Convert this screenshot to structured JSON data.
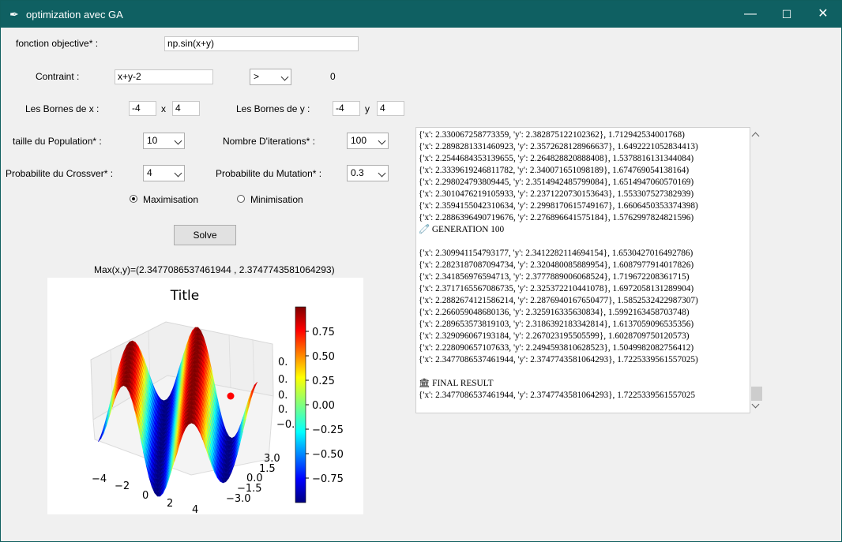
{
  "window": {
    "title": "optimization avec GA",
    "minimize": "—",
    "maximize": "☐",
    "close": "✕"
  },
  "form": {
    "objective_label": "fonction objective* :",
    "objective_value": "np.sin(x+y)",
    "constraint_label": "Contraint :",
    "constraint_value": "x+y-2",
    "constraint_op": ">",
    "constraint_rhs": "0",
    "bounds_x_label": "Les Bornes de x :",
    "bounds_x_min": "-4",
    "bounds_x_sep": "x",
    "bounds_x_max": "4",
    "bounds_y_label": "Les Bornes de y :",
    "bounds_y_min": "-4",
    "bounds_y_sep": "y",
    "bounds_y_max": "4",
    "population_label": "taille du Population* :",
    "population_value": "10",
    "iterations_label": "Nombre D'iterations* :",
    "iterations_value": "100",
    "crossover_label": "Probabilite du Crossver* :",
    "crossover_value": "4",
    "mutation_label": "Probabilite du Mutation* :",
    "mutation_value": "0.3",
    "maximise_label": "Maximisation",
    "minimise_label": "Minimisation",
    "solve_label": "Solve"
  },
  "result_text": "Max(x,y)=(2.3477086537461944 , 2.3747743581064293)",
  "chart_data": {
    "type": "surface",
    "title": "Title",
    "function": "sin(x+y)",
    "x_ticks": [
      "−4",
      "−2",
      "0",
      "2",
      "4"
    ],
    "y_ticks": [
      "−3.0",
      "−1.5",
      "0.0",
      "1.5",
      "3.0"
    ],
    "z_ticks": [
      "−0.",
      "0.",
      "0.",
      "0.",
      "0."
    ],
    "colorbar_ticks": [
      "0.75",
      "0.50",
      "0.25",
      "0.00",
      "−0.25",
      "−0.50",
      "−0.75"
    ],
    "colormap": "jet",
    "marker_color": "#ff0000"
  },
  "log": [
    "{'x': 2.330067258773359, 'y': 2.382875122102362}, 1.712942534001768)",
    "{'x': 2.2898281331460923, 'y': 2.3572628128966637}, 1.6492221052834413)",
    "{'x': 2.2544684353139655, 'y': 2.264828820888408}, 1.5378816131344084)",
    "{'x': 2.3339619246811782, 'y': 2.340071651098189}, 1.674769054138164)",
    "{'x': 2.298024793809445, 'y': 2.3514942485799084}, 1.6514947060570169)",
    "{'x': 2.3010476219105933, 'y': 2.2371220730153643}, 1.553307527382939)",
    "{'x': 2.3594155042310634, 'y': 2.2998170615749167}, 1.6606450353374398)",
    "{'x': 2.2886396490719676, 'y': 2.276896641575184}, 1.5762997824821596)",
    "🧷 GENERATION 100",
    "",
    "{'x': 2.309941154793177, 'y': 2.3412282114694154}, 1.6530427016492786)",
    "{'x': 2.2823187087094734, 'y': 2.320480085889954}, 1.6087977914017826)",
    "{'x': 2.341856976594713, 'y': 2.3777889006068524}, 1.719672208361715)",
    "{'x': 2.3717165567086735, 'y': 2.325372210441078}, 1.6972058131289904)",
    "{'x': 2.2882674121586214, 'y': 2.2876940167650477}, 1.5852532422987307)",
    "{'x': 2.266059048680136, 'y': 2.325916335630834}, 1.5992163458703748)",
    "{'x': 2.289653573819103, 'y': 2.3186392183342814}, 1.6137059096535356)",
    "{'x': 2.329096067193184, 'y': 2.267023195505599}, 1.6028709750120573)",
    "{'x': 2.228090657107633, 'y': 2.2494593810628523}, 1.5049982082756412)",
    "{'x': 2.3477086537461944, 'y': 2.3747743581064293}, 1.7225339561557025)",
    "",
    "🏛 FINAL RESULT",
    "{'x': 2.3477086537461944, 'y': 2.3747743581064293}, 1.7225339561557025"
  ]
}
